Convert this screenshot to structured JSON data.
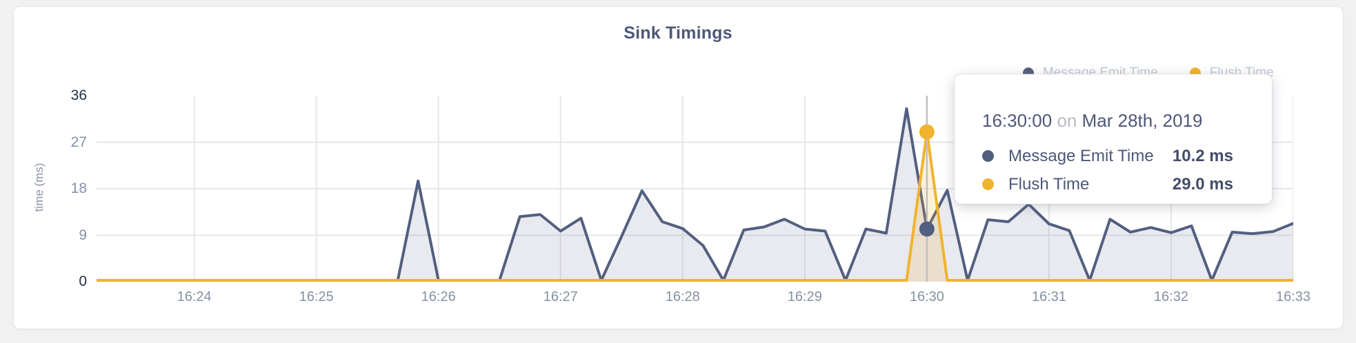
{
  "card": {
    "title": "Sink Timings"
  },
  "y_axis": {
    "title": "time (ms)",
    "ticks": [
      36,
      27,
      18,
      9,
      0
    ]
  },
  "x_axis": {
    "ticks": [
      "16:24",
      "16:25",
      "16:26",
      "16:27",
      "16:28",
      "16:29",
      "16:30",
      "16:31",
      "16:32",
      "16:33"
    ]
  },
  "legend": {
    "items": [
      {
        "label": "Message Emit Time",
        "color": "#535f80"
      },
      {
        "label": "Flush Time",
        "color": "#f0b32e"
      }
    ]
  },
  "tooltip": {
    "time": "16:30:00",
    "connector": "on",
    "date": "Mar 28th, 2019",
    "rows": [
      {
        "label": "Message Emit Time",
        "value": "10.2 ms",
        "color": "#535f80"
      },
      {
        "label": "Flush Time",
        "value": "29.0 ms",
        "color": "#f0b32e"
      }
    ]
  },
  "chart_data": {
    "type": "area",
    "title": "Sink Timings",
    "ylabel": "time (ms)",
    "ylim": [
      0,
      36
    ],
    "grid": true,
    "legend_position": "top-right",
    "x_start": "16:23:12",
    "x_end": "16:33:00",
    "x": [
      "16:23:10",
      "16:23:20",
      "16:23:30",
      "16:23:40",
      "16:23:50",
      "16:24:00",
      "16:24:10",
      "16:24:20",
      "16:24:30",
      "16:24:40",
      "16:24:50",
      "16:25:00",
      "16:25:10",
      "16:25:20",
      "16:25:30",
      "16:25:40",
      "16:25:50",
      "16:26:00",
      "16:26:10",
      "16:26:20",
      "16:26:30",
      "16:26:40",
      "16:26:50",
      "16:27:00",
      "16:27:10",
      "16:27:20",
      "16:27:30",
      "16:27:40",
      "16:27:50",
      "16:28:00",
      "16:28:10",
      "16:28:20",
      "16:28:30",
      "16:28:40",
      "16:28:50",
      "16:29:00",
      "16:29:10",
      "16:29:20",
      "16:29:30",
      "16:29:40",
      "16:29:50",
      "16:30:00",
      "16:30:10",
      "16:30:20",
      "16:30:30",
      "16:30:40",
      "16:30:50",
      "16:31:00",
      "16:31:10",
      "16:31:20",
      "16:31:30",
      "16:31:40",
      "16:31:50",
      "16:32:00",
      "16:32:10",
      "16:32:20",
      "16:32:30",
      "16:32:40",
      "16:32:50",
      "16:33:00"
    ],
    "series": [
      {
        "name": "Message Emit Time",
        "color": "#535f80",
        "fill_opacity": 0.13,
        "values": [
          0,
          0,
          0,
          0,
          0,
          0,
          0,
          0,
          0,
          0,
          0,
          0,
          0,
          0,
          0,
          0,
          19.5,
          0,
          0,
          0,
          0,
          12.6,
          13.0,
          9.8,
          12.3,
          0,
          8.8,
          17.6,
          11.6,
          10.3,
          7.0,
          0,
          10.0,
          10.6,
          12.1,
          10.2,
          9.8,
          0,
          10.2,
          9.4,
          33.5,
          10.2,
          17.7,
          0,
          12.0,
          11.6,
          15.0,
          11.2,
          9.9,
          0,
          12.1,
          9.6,
          10.5,
          9.5,
          10.8,
          0,
          9.6,
          9.3,
          9.7,
          11.3
        ]
      },
      {
        "name": "Flush Time",
        "color": "#f0b32e",
        "fill_opacity": 0.18,
        "values": [
          0,
          0,
          0,
          0,
          0,
          0,
          0,
          0,
          0,
          0,
          0,
          0,
          0,
          0,
          0,
          0,
          0,
          0,
          0,
          0,
          0,
          0,
          0,
          0,
          0,
          0,
          0,
          0,
          0,
          0,
          0,
          0,
          0,
          0,
          0,
          0,
          0,
          0,
          0,
          0,
          0,
          29.0,
          0,
          0,
          0,
          0,
          0,
          0,
          0,
          0,
          0,
          0,
          0,
          0,
          0,
          0,
          0,
          0,
          0,
          0
        ]
      }
    ],
    "highlight": {
      "x": "16:30:00",
      "crosshair_color": "#bcbfc4",
      "points": [
        {
          "series": "Message Emit Time",
          "value": 10.2
        },
        {
          "series": "Flush Time",
          "value": 29.0
        }
      ]
    }
  }
}
